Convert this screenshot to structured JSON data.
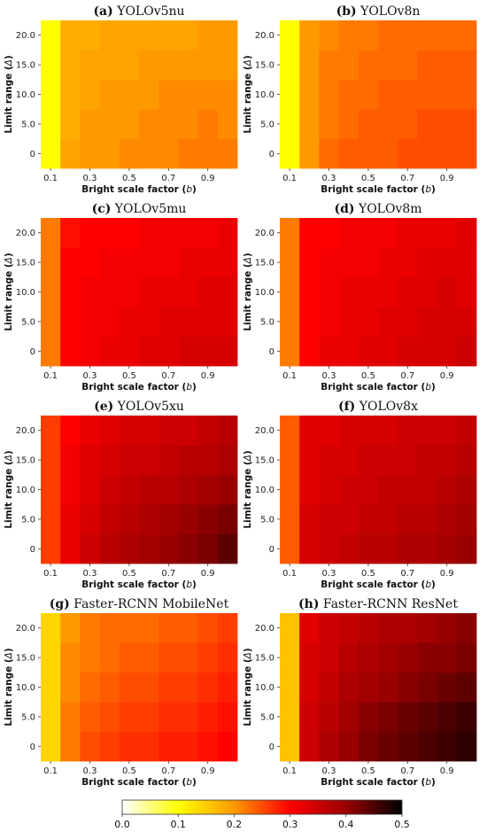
{
  "figure": {
    "x_tick_labels": [
      "0.1",
      "0.3",
      "0.5",
      "0.7",
      "0.9"
    ],
    "y_tick_labels": [
      "0",
      "5.0",
      "10.0",
      "15.0",
      "20.0"
    ],
    "xlabel_main": "Bright scale factor (",
    "xlabel_var": "b",
    "xlabel_end": ")",
    "ylabel_main": "Limit range (",
    "ylabel_var": "Δ",
    "ylabel_end": ")"
  },
  "colorbar": {
    "min": 0.0,
    "max": 0.5,
    "colormap": "hot_r",
    "stops": [
      "#ffffff",
      "#ffff00",
      "#ff9900",
      "#ff0000",
      "#990000",
      "#000000"
    ],
    "tick_labels": [
      "0.0",
      "0.1",
      "0.2",
      "0.3",
      "0.4",
      "0.5"
    ]
  },
  "chart_data": [
    {
      "type": "heatmap",
      "panel": "(a)",
      "title": "YOLOv5nu",
      "x": [
        0.1,
        0.2,
        0.3,
        0.4,
        0.5,
        0.6,
        0.7,
        0.8,
        0.9,
        1.0
      ],
      "y": [
        0,
        5,
        10,
        15,
        20
      ],
      "xlabel": "Bright scale factor (b)",
      "ylabel": "Limit range (Δ)",
      "values": [
        [
          0.1,
          0.19,
          0.2,
          0.2,
          0.21,
          0.21,
          0.21,
          0.22,
          0.22,
          0.22
        ],
        [
          0.1,
          0.18,
          0.2,
          0.2,
          0.2,
          0.21,
          0.21,
          0.21,
          0.22,
          0.21
        ],
        [
          0.1,
          0.18,
          0.19,
          0.2,
          0.2,
          0.2,
          0.21,
          0.21,
          0.21,
          0.21
        ],
        [
          0.1,
          0.18,
          0.19,
          0.19,
          0.19,
          0.2,
          0.2,
          0.2,
          0.2,
          0.2
        ],
        [
          0.1,
          0.18,
          0.18,
          0.19,
          0.19,
          0.19,
          0.19,
          0.19,
          0.2,
          0.2
        ]
      ]
    },
    {
      "type": "heatmap",
      "panel": "(b)",
      "title": "YOLOv8n",
      "x": [
        0.1,
        0.2,
        0.3,
        0.4,
        0.5,
        0.6,
        0.7,
        0.8,
        0.9,
        1.0
      ],
      "y": [
        0,
        5,
        10,
        15,
        20
      ],
      "xlabel": "Bright scale factor (b)",
      "ylabel": "Limit range (Δ)",
      "values": [
        [
          0.1,
          0.2,
          0.23,
          0.24,
          0.24,
          0.24,
          0.25,
          0.25,
          0.25,
          0.25
        ],
        [
          0.1,
          0.2,
          0.22,
          0.23,
          0.24,
          0.24,
          0.24,
          0.25,
          0.25,
          0.25
        ],
        [
          0.1,
          0.2,
          0.22,
          0.23,
          0.23,
          0.24,
          0.24,
          0.24,
          0.24,
          0.24
        ],
        [
          0.1,
          0.2,
          0.22,
          0.22,
          0.23,
          0.23,
          0.23,
          0.24,
          0.24,
          0.24
        ],
        [
          0.1,
          0.2,
          0.21,
          0.22,
          0.22,
          0.23,
          0.23,
          0.23,
          0.23,
          0.23
        ]
      ]
    },
    {
      "type": "heatmap",
      "panel": "(c)",
      "title": "YOLOv5mu",
      "x": [
        0.1,
        0.2,
        0.3,
        0.4,
        0.5,
        0.6,
        0.7,
        0.8,
        0.9,
        1.0
      ],
      "y": [
        0,
        5,
        10,
        15,
        20
      ],
      "xlabel": "Bright scale factor (b)",
      "ylabel": "Limit range (Δ)",
      "values": [
        [
          0.22,
          0.3,
          0.31,
          0.32,
          0.32,
          0.33,
          0.33,
          0.34,
          0.34,
          0.34
        ],
        [
          0.22,
          0.3,
          0.31,
          0.31,
          0.32,
          0.32,
          0.33,
          0.33,
          0.33,
          0.33
        ],
        [
          0.22,
          0.3,
          0.31,
          0.31,
          0.31,
          0.32,
          0.32,
          0.32,
          0.33,
          0.33
        ],
        [
          0.22,
          0.3,
          0.3,
          0.31,
          0.31,
          0.31,
          0.31,
          0.32,
          0.32,
          0.32
        ],
        [
          0.22,
          0.29,
          0.3,
          0.3,
          0.3,
          0.31,
          0.31,
          0.31,
          0.31,
          0.32
        ]
      ]
    },
    {
      "type": "heatmap",
      "panel": "(d)",
      "title": "YOLOv8m",
      "x": [
        0.1,
        0.2,
        0.3,
        0.4,
        0.5,
        0.6,
        0.7,
        0.8,
        0.9,
        1.0
      ],
      "y": [
        0,
        5,
        10,
        15,
        20
      ],
      "xlabel": "Bright scale factor (b)",
      "ylabel": "Limit range (Δ)",
      "values": [
        [
          0.22,
          0.3,
          0.32,
          0.32,
          0.33,
          0.33,
          0.34,
          0.34,
          0.34,
          0.35
        ],
        [
          0.22,
          0.3,
          0.31,
          0.32,
          0.32,
          0.33,
          0.33,
          0.34,
          0.34,
          0.34
        ],
        [
          0.22,
          0.3,
          0.31,
          0.32,
          0.32,
          0.32,
          0.33,
          0.33,
          0.34,
          0.33
        ],
        [
          0.22,
          0.3,
          0.31,
          0.31,
          0.31,
          0.32,
          0.32,
          0.33,
          0.33,
          0.33
        ],
        [
          0.22,
          0.3,
          0.3,
          0.31,
          0.31,
          0.31,
          0.32,
          0.32,
          0.32,
          0.33
        ]
      ]
    },
    {
      "type": "heatmap",
      "panel": "(e)",
      "title": "YOLOv5xu",
      "x": [
        0.1,
        0.2,
        0.3,
        0.4,
        0.5,
        0.6,
        0.7,
        0.8,
        0.9,
        1.0
      ],
      "y": [
        0,
        5,
        10,
        15,
        20
      ],
      "xlabel": "Bright scale factor (b)",
      "ylabel": "Limit range (Δ)",
      "values": [
        [
          0.26,
          0.32,
          0.35,
          0.37,
          0.38,
          0.39,
          0.4,
          0.41,
          0.42,
          0.44
        ],
        [
          0.26,
          0.32,
          0.34,
          0.36,
          0.37,
          0.38,
          0.39,
          0.4,
          0.41,
          0.42
        ],
        [
          0.26,
          0.31,
          0.33,
          0.35,
          0.36,
          0.37,
          0.37,
          0.38,
          0.39,
          0.4
        ],
        [
          0.26,
          0.31,
          0.33,
          0.34,
          0.35,
          0.35,
          0.36,
          0.37,
          0.37,
          0.38
        ],
        [
          0.26,
          0.3,
          0.32,
          0.33,
          0.34,
          0.34,
          0.35,
          0.35,
          0.36,
          0.37
        ]
      ]
    },
    {
      "type": "heatmap",
      "panel": "(f)",
      "title": "YOLOv8x",
      "x": [
        0.1,
        0.2,
        0.3,
        0.4,
        0.5,
        0.6,
        0.7,
        0.8,
        0.9,
        1.0
      ],
      "y": [
        0,
        5,
        10,
        15,
        20
      ],
      "xlabel": "Bright scale factor (b)",
      "ylabel": "Limit range (Δ)",
      "values": [
        [
          0.24,
          0.34,
          0.35,
          0.36,
          0.37,
          0.37,
          0.38,
          0.38,
          0.39,
          0.4
        ],
        [
          0.24,
          0.34,
          0.35,
          0.35,
          0.36,
          0.36,
          0.37,
          0.37,
          0.38,
          0.39
        ],
        [
          0.24,
          0.33,
          0.34,
          0.35,
          0.35,
          0.36,
          0.36,
          0.36,
          0.37,
          0.38
        ],
        [
          0.24,
          0.33,
          0.34,
          0.34,
          0.35,
          0.35,
          0.35,
          0.36,
          0.36,
          0.37
        ],
        [
          0.24,
          0.33,
          0.33,
          0.34,
          0.34,
          0.34,
          0.35,
          0.35,
          0.35,
          0.36
        ]
      ]
    },
    {
      "type": "heatmap",
      "panel": "(g)",
      "title": "Faster-RCNN MobileNet",
      "x": [
        0.1,
        0.2,
        0.3,
        0.4,
        0.5,
        0.6,
        0.7,
        0.8,
        0.9,
        1.0
      ],
      "y": [
        0,
        5,
        10,
        15,
        20
      ],
      "xlabel": "Bright scale factor (b)",
      "ylabel": "Limit range (Δ)",
      "values": [
        [
          0.14,
          0.22,
          0.25,
          0.26,
          0.27,
          0.27,
          0.28,
          0.28,
          0.29,
          0.3
        ],
        [
          0.14,
          0.22,
          0.24,
          0.25,
          0.26,
          0.26,
          0.27,
          0.27,
          0.28,
          0.29
        ],
        [
          0.14,
          0.21,
          0.23,
          0.24,
          0.25,
          0.25,
          0.26,
          0.26,
          0.27,
          0.28
        ],
        [
          0.14,
          0.21,
          0.22,
          0.23,
          0.24,
          0.24,
          0.25,
          0.25,
          0.26,
          0.27
        ],
        [
          0.14,
          0.2,
          0.22,
          0.23,
          0.23,
          0.23,
          0.24,
          0.24,
          0.25,
          0.26
        ]
      ]
    },
    {
      "type": "heatmap",
      "panel": "(h)",
      "title": "Faster-RCNN ResNet",
      "x": [
        0.1,
        0.2,
        0.3,
        0.4,
        0.5,
        0.6,
        0.7,
        0.8,
        0.9,
        1.0
      ],
      "y": [
        0,
        5,
        10,
        15,
        20
      ],
      "xlabel": "Bright scale factor (b)",
      "ylabel": "Limit range (Δ)",
      "values": [
        [
          0.16,
          0.35,
          0.38,
          0.4,
          0.42,
          0.43,
          0.44,
          0.45,
          0.46,
          0.47
        ],
        [
          0.16,
          0.35,
          0.37,
          0.39,
          0.41,
          0.42,
          0.43,
          0.44,
          0.45,
          0.46
        ],
        [
          0.16,
          0.34,
          0.36,
          0.38,
          0.39,
          0.4,
          0.41,
          0.42,
          0.43,
          0.44
        ],
        [
          0.16,
          0.34,
          0.35,
          0.37,
          0.38,
          0.39,
          0.4,
          0.41,
          0.41,
          0.42
        ],
        [
          0.16,
          0.33,
          0.35,
          0.36,
          0.37,
          0.38,
          0.38,
          0.39,
          0.4,
          0.41
        ]
      ]
    }
  ]
}
